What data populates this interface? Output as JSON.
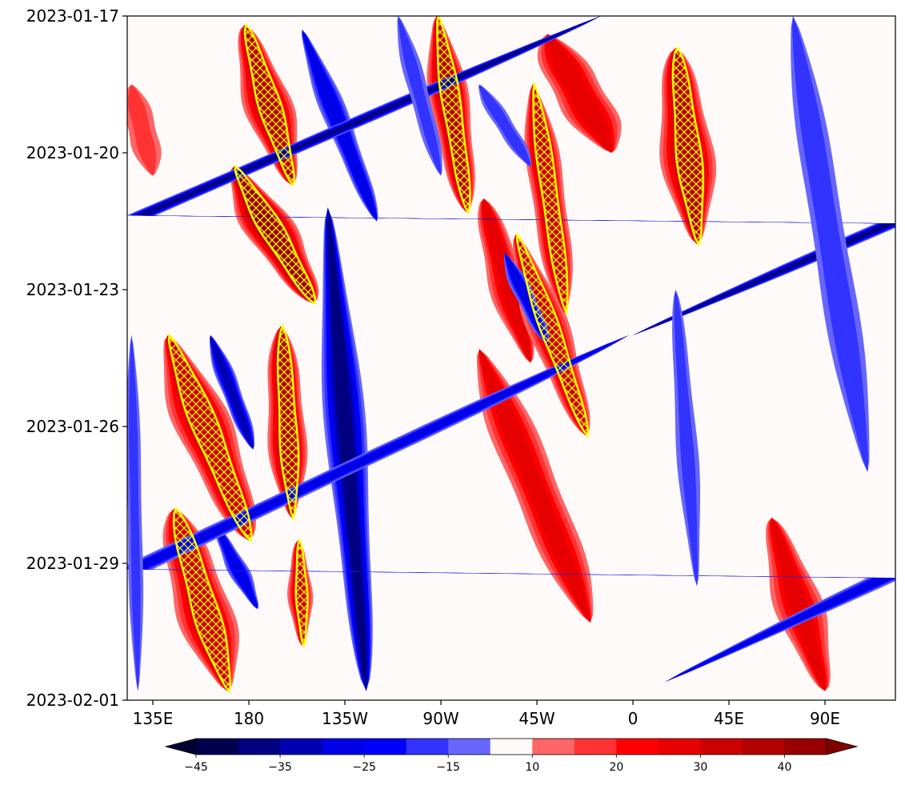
{
  "chart_data": {
    "type": "heatmap",
    "title": "",
    "xlabel": "",
    "ylabel": "",
    "x_ticks": [
      "135E",
      "180",
      "135W",
      "90W",
      "45W",
      "0",
      "45E",
      "90E"
    ],
    "y_ticks": [
      "2023-01-17",
      "2023-01-20",
      "2023-01-23",
      "2023-01-26",
      "2023-01-29",
      "2023-02-01"
    ],
    "time_range": [
      "2023-01-17",
      "2023-02-01"
    ],
    "longitude_range": [
      "123E",
      "120E"
    ],
    "colorbar": {
      "levels": [
        -45,
        -40,
        -35,
        -30,
        -25,
        -20,
        -15,
        -10,
        10,
        15,
        20,
        25,
        30,
        35,
        40,
        45
      ],
      "labels": [
        "−45",
        "−35",
        "−25",
        "−15",
        "10",
        "20",
        "30",
        "40"
      ],
      "colors": [
        "#00004c",
        "#000080",
        "#0000b3",
        "#0000e6",
        "#0000ff",
        "#3333ff",
        "#6666ff",
        "#fffafa",
        "#ff6666",
        "#ff3333",
        "#ff0000",
        "#e60000",
        "#cc0000",
        "#b30000",
        "#990000"
      ],
      "extend": "both",
      "extend_min_color": "#000033",
      "extend_max_color": "#800000"
    },
    "overlay": {
      "color": "#ffff00",
      "style": "hatched contours"
    },
    "features": [
      {
        "kind": "pos",
        "lon": 320,
        "t0": 0.4,
        "lon1": 350,
        "t1": 3.0,
        "w": 22,
        "amp": 28
      },
      {
        "kind": "pos",
        "lon": 178,
        "t0": 0.2,
        "lon1": 200,
        "t1": 3.7,
        "w": 18,
        "amp": 36
      },
      {
        "kind": "pos",
        "lon": 173,
        "t0": 3.3,
        "lon1": 210,
        "t1": 6.3,
        "w": 20,
        "amp": 42
      },
      {
        "kind": "pos",
        "lon": 142,
        "t0": 7.0,
        "lon1": 180,
        "t1": 11.5,
        "w": 22,
        "amp": 34
      },
      {
        "kind": "pos",
        "lon": 195,
        "t0": 6.8,
        "lon1": 200,
        "t1": 11.0,
        "w": 15,
        "amp": 36
      },
      {
        "kind": "pos",
        "lon": 145,
        "t0": 10.8,
        "lon1": 170,
        "t1": 14.8,
        "w": 22,
        "amp": 32
      },
      {
        "kind": "pos",
        "lon": 203,
        "t0": 11.5,
        "lon1": 205,
        "t1": 13.8,
        "w": 9,
        "amp": 30
      },
      {
        "kind": "pos",
        "lon": 268,
        "t0": 0.0,
        "lon1": 282,
        "t1": 4.3,
        "w": 15,
        "amp": 36
      },
      {
        "kind": "pos",
        "lon": 290,
        "t0": 4.0,
        "lon1": 312,
        "t1": 7.6,
        "w": 15,
        "amp": 28
      },
      {
        "kind": "pos",
        "lon": 288,
        "t0": 7.3,
        "lon1": 340,
        "t1": 13.3,
        "w": 20,
        "amp": 26
      },
      {
        "kind": "pos",
        "lon": 305,
        "t0": 4.8,
        "lon1": 338,
        "t1": 9.2,
        "w": 16,
        "amp": 30
      },
      {
        "kind": "pos",
        "lon": 313,
        "t0": 1.5,
        "lon1": 328,
        "t1": 6.5,
        "w": 14,
        "amp": 32
      },
      {
        "kind": "pos",
        "lon": 20,
        "t0": 0.7,
        "lon1": 30,
        "t1": 5.0,
        "w": 20,
        "amp": 36
      },
      {
        "kind": "pos",
        "lon": 65,
        "t0": 11.0,
        "lon1": 90,
        "t1": 14.8,
        "w": 18,
        "amp": 26
      },
      {
        "kind": "pos",
        "lon": 125,
        "t0": 1.5,
        "lon1": 135,
        "t1": 3.5,
        "w": 12,
        "amp": 16
      },
      {
        "kind": "neg",
        "lon": 205,
        "t0": 0.3,
        "lon1": 240,
        "t1": 4.5,
        "w": 10,
        "amp": 28
      },
      {
        "kind": "neg",
        "lon": 217,
        "t0": 4.2,
        "lon1": 235,
        "t1": 14.8,
        "w": 15,
        "amp": 36
      },
      {
        "kind": "neg",
        "lon": 162,
        "t0": 7.0,
        "lon1": 182,
        "t1": 9.5,
        "w": 8,
        "amp": 32
      },
      {
        "kind": "neg",
        "lon": 165,
        "t0": 11.2,
        "lon1": 184,
        "t1": 13.0,
        "w": 8,
        "amp": 28
      },
      {
        "kind": "neg",
        "lon": 345,
        "t0": 0.0,
        "lon1": 0,
        "t1": 7.0,
        "w": 12,
        "amp": 36
      },
      {
        "kind": "neg",
        "lon": 358,
        "t0": 7.0,
        "lon1": 15,
        "t1": 14.6,
        "w": 14,
        "amp": 28
      },
      {
        "kind": "neg",
        "lon": 300,
        "t0": 5.2,
        "lon1": 320,
        "t1": 7.2,
        "w": 8,
        "amp": 26
      },
      {
        "kind": "neg",
        "lon": 288,
        "t0": 1.5,
        "lon1": 312,
        "t1": 3.3,
        "w": 8,
        "amp": 18
      },
      {
        "kind": "neg",
        "lon": 75,
        "t0": 0.0,
        "lon1": 110,
        "t1": 10.0,
        "w": 14,
        "amp": 18
      },
      {
        "kind": "neg",
        "lon": 250,
        "t0": 0.0,
        "lon1": 270,
        "t1": 3.5,
        "w": 8,
        "amp": 16
      },
      {
        "kind": "neg",
        "lon": 20,
        "t0": 6.0,
        "lon1": 30,
        "t1": 12.5,
        "w": 8,
        "amp": 16
      },
      {
        "kind": "neg",
        "lon": 125,
        "t0": 7.0,
        "lon1": 128,
        "t1": 14.8,
        "w": 6,
        "amp": 16
      }
    ]
  }
}
